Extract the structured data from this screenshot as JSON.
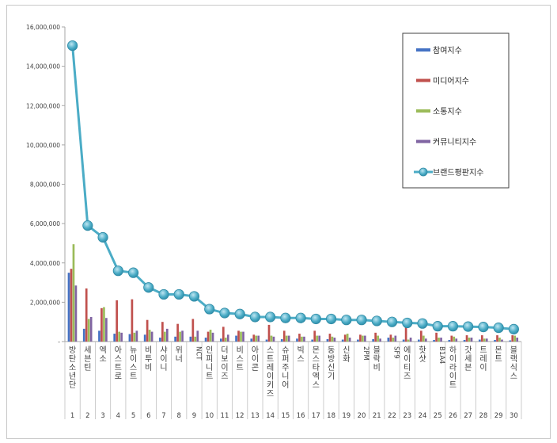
{
  "chart_data": {
    "type": "bar",
    "title": "",
    "xlabel": "",
    "ylabel": "",
    "ylim": [
      0,
      16000000
    ],
    "y_ticks": [
      "-",
      "2,000,000",
      "4,000,000",
      "6,000,000",
      "8,000,000",
      "10,000,000",
      "12,000,000",
      "14,000,000",
      "16,000,000"
    ],
    "grid": "none",
    "legend_position": "top-right",
    "ranks": [
      "1",
      "2",
      "3",
      "4",
      "5",
      "6",
      "7",
      "8",
      "9",
      "10",
      "11",
      "12",
      "13",
      "14",
      "15",
      "16",
      "17",
      "18",
      "19",
      "20",
      "21",
      "22",
      "23",
      "24",
      "25",
      "26",
      "27",
      "28",
      "29",
      "30"
    ],
    "categories": [
      "방탄소년단",
      "세븐틴",
      "엑소",
      "아스트로",
      "뉴이스트",
      "비투비",
      "샤이니",
      "위너",
      "NCT",
      "인피니트",
      "더보이즈",
      "비스트",
      "아이콘",
      "스트레이키즈",
      "슈퍼주니어",
      "빅스",
      "몬스타엑스",
      "동방신기",
      "신화",
      "2PM",
      "블락비",
      "SF9",
      "에이티즈",
      "핫샷",
      "B1A4",
      "하이라이트",
      "갓세븐",
      "트레이",
      "몬트",
      "블랙식스"
    ],
    "series": [
      {
        "name": "참여지수",
        "type": "bar",
        "color": "#4472c4",
        "values": [
          3500000,
          650000,
          550000,
          400000,
          380000,
          350000,
          200000,
          250000,
          250000,
          200000,
          150000,
          300000,
          150000,
          100000,
          120000,
          150000,
          100000,
          120000,
          100000,
          100000,
          120000,
          200000,
          100000,
          100000,
          80000,
          80000,
          80000,
          100000,
          80000,
          60000
        ]
      },
      {
        "name": "미디어지수",
        "type": "bar",
        "color": "#c0504d",
        "values": [
          3700000,
          2700000,
          1700000,
          2100000,
          2150000,
          1100000,
          1000000,
          900000,
          1150000,
          500000,
          750000,
          550000,
          350000,
          850000,
          550000,
          400000,
          550000,
          400000,
          350000,
          350000,
          450000,
          350000,
          800000,
          550000,
          450000,
          300000,
          320000,
          320000,
          320000,
          320000
        ]
      },
      {
        "name": "소통지수",
        "type": "bar",
        "color": "#9bbb59",
        "values": [
          4950000,
          1150000,
          1750000,
          500000,
          450000,
          600000,
          500000,
          500000,
          250000,
          600000,
          200000,
          500000,
          300000,
          300000,
          300000,
          250000,
          300000,
          250000,
          400000,
          300000,
          300000,
          200000,
          100000,
          300000,
          200000,
          250000,
          200000,
          150000,
          200000,
          300000
        ]
      },
      {
        "name": "커뮤니티지수",
        "type": "bar",
        "color": "#8064a2",
        "values": [
          2850000,
          1250000,
          1200000,
          450000,
          550000,
          500000,
          650000,
          550000,
          550000,
          450000,
          350000,
          500000,
          300000,
          250000,
          300000,
          250000,
          300000,
          200000,
          200000,
          300000,
          150000,
          300000,
          200000,
          150000,
          200000,
          150000,
          200000,
          150000,
          100000,
          200000
        ]
      },
      {
        "name": "브랜드평판지수",
        "type": "line",
        "color": "#4bacc6",
        "values": [
          15050000,
          5900000,
          5300000,
          3600000,
          3500000,
          2750000,
          2400000,
          2400000,
          2300000,
          1650000,
          1450000,
          1400000,
          1250000,
          1250000,
          1200000,
          1200000,
          1150000,
          1150000,
          1100000,
          1100000,
          1050000,
          1000000,
          950000,
          920000,
          780000,
          780000,
          760000,
          740000,
          700000,
          630000
        ]
      }
    ]
  }
}
